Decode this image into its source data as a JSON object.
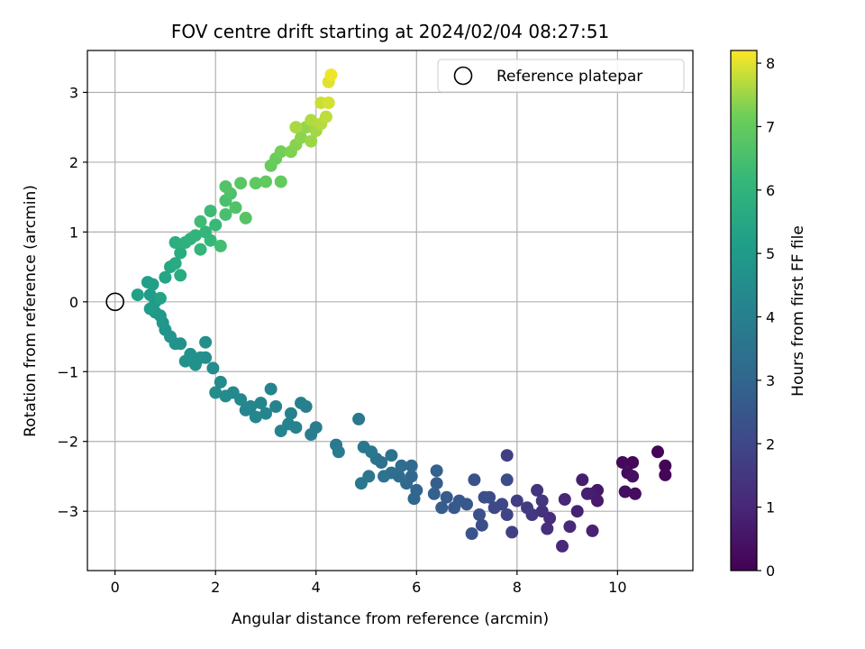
{
  "chart_data": {
    "type": "scatter",
    "title": "FOV centre drift starting at 2024/02/04 08:27:51",
    "xlabel": "Angular distance from reference (arcmin)",
    "ylabel": "Rotation from reference (arcmin)",
    "xlim": [
      -0.55,
      11.5
    ],
    "ylim": [
      -3.85,
      3.6
    ],
    "xticks": [
      0,
      2,
      4,
      6,
      8,
      10
    ],
    "yticks": [
      -3,
      -2,
      -1,
      0,
      1,
      2,
      3
    ],
    "grid": true,
    "legend": {
      "position": "top-right",
      "entries": [
        "Reference platepar"
      ]
    },
    "colorbar": {
      "label": "Hours from first FF file",
      "range": [
        0,
        8.2
      ],
      "ticks": [
        0,
        1,
        2,
        3,
        4,
        5,
        6,
        7,
        8
      ],
      "colormap": "viridis"
    },
    "reference_point": {
      "x": 0,
      "y": 0,
      "label": "Reference platepar"
    },
    "series": [
      {
        "points": [
          [
            10.8,
            -2.15,
            0.1
          ],
          [
            10.95,
            -2.35,
            0.1
          ],
          [
            10.95,
            -2.48,
            0.12
          ],
          [
            10.3,
            -2.3,
            0.15
          ],
          [
            10.1,
            -2.3,
            0.2
          ],
          [
            10.2,
            -2.45,
            0.25
          ],
          [
            10.35,
            -2.75,
            0.3
          ],
          [
            10.15,
            -2.72,
            0.35
          ],
          [
            10.3,
            -2.5,
            0.4
          ],
          [
            9.6,
            -2.7,
            0.6
          ],
          [
            9.6,
            -2.85,
            0.65
          ],
          [
            9.5,
            -2.75,
            0.7
          ],
          [
            9.3,
            -2.55,
            0.75
          ],
          [
            9.4,
            -2.75,
            0.8
          ],
          [
            9.2,
            -3.0,
            0.85
          ],
          [
            9.5,
            -3.28,
            0.9
          ],
          [
            8.95,
            -2.83,
            1.0
          ],
          [
            9.05,
            -3.22,
            1.05
          ],
          [
            8.9,
            -3.5,
            1.1
          ],
          [
            8.65,
            -3.1,
            1.2
          ],
          [
            8.6,
            -3.25,
            1.25
          ],
          [
            8.5,
            -3.0,
            1.3
          ],
          [
            8.4,
            -2.7,
            1.4
          ],
          [
            8.5,
            -2.85,
            1.45
          ],
          [
            8.3,
            -3.05,
            1.5
          ],
          [
            8.2,
            -2.95,
            1.6
          ],
          [
            8.0,
            -2.85,
            1.7
          ],
          [
            7.8,
            -2.2,
            1.75
          ],
          [
            7.9,
            -3.3,
            1.8
          ],
          [
            7.8,
            -3.05,
            1.9
          ],
          [
            7.7,
            -2.9,
            2.0
          ],
          [
            7.55,
            -2.95,
            2.05
          ],
          [
            7.8,
            -2.55,
            2.1
          ],
          [
            7.45,
            -2.8,
            2.15
          ],
          [
            7.3,
            -3.2,
            2.2
          ],
          [
            7.35,
            -2.8,
            2.25
          ],
          [
            7.25,
            -3.05,
            2.3
          ],
          [
            7.15,
            -2.55,
            2.35
          ],
          [
            7.1,
            -3.32,
            2.4
          ],
          [
            7.0,
            -2.9,
            2.5
          ],
          [
            6.85,
            -2.85,
            2.55
          ],
          [
            6.75,
            -2.95,
            2.6
          ],
          [
            6.6,
            -2.8,
            2.65
          ],
          [
            6.5,
            -2.95,
            2.7
          ],
          [
            6.4,
            -2.6,
            2.75
          ],
          [
            6.35,
            -2.75,
            2.8
          ],
          [
            6.4,
            -2.42,
            2.85
          ],
          [
            6.0,
            -2.7,
            3.0
          ],
          [
            5.95,
            -2.82,
            3.05
          ],
          [
            5.9,
            -2.5,
            3.1
          ],
          [
            5.9,
            -2.35,
            3.15
          ],
          [
            5.8,
            -2.6,
            3.2
          ],
          [
            5.65,
            -2.5,
            3.25
          ],
          [
            5.7,
            -2.35,
            3.3
          ],
          [
            5.5,
            -2.45,
            3.35
          ],
          [
            5.3,
            -2.3,
            3.4
          ],
          [
            5.35,
            -2.5,
            3.45
          ],
          [
            5.5,
            -2.2,
            3.5
          ],
          [
            5.2,
            -2.25,
            3.55
          ],
          [
            5.05,
            -2.5,
            3.6
          ],
          [
            5.1,
            -2.15,
            3.65
          ],
          [
            4.95,
            -2.08,
            3.7
          ],
          [
            4.9,
            -2.6,
            3.72
          ],
          [
            4.85,
            -1.68,
            3.75
          ],
          [
            4.4,
            -2.05,
            3.8
          ],
          [
            4.45,
            -2.15,
            3.85
          ],
          [
            4.0,
            -1.8,
            3.9
          ],
          [
            3.9,
            -1.9,
            3.95
          ],
          [
            3.8,
            -1.5,
            4.0
          ],
          [
            3.7,
            -1.45,
            4.02
          ],
          [
            3.6,
            -1.8,
            4.05
          ],
          [
            3.5,
            -1.6,
            4.08
          ],
          [
            3.45,
            -1.75,
            4.1
          ],
          [
            3.3,
            -1.85,
            4.12
          ],
          [
            3.2,
            -1.5,
            4.15
          ],
          [
            3.1,
            -1.25,
            4.18
          ],
          [
            3.0,
            -1.6,
            4.2
          ],
          [
            2.9,
            -1.45,
            4.22
          ],
          [
            2.8,
            -1.65,
            4.25
          ],
          [
            2.7,
            -1.5,
            4.28
          ],
          [
            2.6,
            -1.55,
            4.3
          ],
          [
            2.5,
            -1.4,
            4.32
          ],
          [
            2.35,
            -1.3,
            4.35
          ],
          [
            2.2,
            -1.35,
            4.38
          ],
          [
            2.1,
            -1.15,
            4.4
          ],
          [
            1.95,
            -0.95,
            4.45
          ],
          [
            2.0,
            -1.3,
            4.5
          ],
          [
            1.8,
            -0.8,
            4.55
          ],
          [
            1.8,
            -0.58,
            4.58
          ],
          [
            1.7,
            -0.8,
            4.6
          ],
          [
            1.6,
            -0.9,
            4.62
          ],
          [
            1.5,
            -0.75,
            4.65
          ],
          [
            1.4,
            -0.85,
            4.68
          ],
          [
            1.3,
            -0.6,
            4.7
          ],
          [
            1.2,
            -0.6,
            4.72
          ],
          [
            1.1,
            -0.5,
            4.75
          ],
          [
            1.0,
            -0.4,
            4.8
          ],
          [
            0.95,
            -0.3,
            4.85
          ],
          [
            0.9,
            -0.2,
            4.9
          ],
          [
            0.8,
            -0.15,
            4.95
          ],
          [
            0.8,
            0.0,
            5.0
          ],
          [
            0.7,
            -0.1,
            5.05
          ],
          [
            0.7,
            0.1,
            5.1
          ],
          [
            0.75,
            0.25,
            5.15
          ],
          [
            0.65,
            0.28,
            5.2
          ],
          [
            0.45,
            0.1,
            5.25
          ],
          [
            0.9,
            0.05,
            5.3
          ],
          [
            1.0,
            0.35,
            5.4
          ],
          [
            1.1,
            0.5,
            5.5
          ],
          [
            1.2,
            0.55,
            5.6
          ],
          [
            1.3,
            0.38,
            5.65
          ],
          [
            1.3,
            0.7,
            5.7
          ],
          [
            1.2,
            0.85,
            5.8
          ],
          [
            1.4,
            0.85,
            5.85
          ],
          [
            1.5,
            0.9,
            5.9
          ],
          [
            1.6,
            0.95,
            6.0
          ],
          [
            1.7,
            0.75,
            6.05
          ],
          [
            1.8,
            1.0,
            6.1
          ],
          [
            1.9,
            0.88,
            6.15
          ],
          [
            2.0,
            1.1,
            6.2
          ],
          [
            1.9,
            1.3,
            6.3
          ],
          [
            1.7,
            1.15,
            6.35
          ],
          [
            2.1,
            0.8,
            6.4
          ],
          [
            2.2,
            1.25,
            6.5
          ],
          [
            2.2,
            1.45,
            6.55
          ],
          [
            2.3,
            1.55,
            6.6
          ],
          [
            2.4,
            1.35,
            6.65
          ],
          [
            2.2,
            1.65,
            6.7
          ],
          [
            2.6,
            1.2,
            6.75
          ],
          [
            2.5,
            1.7,
            6.8
          ],
          [
            2.8,
            1.7,
            6.9
          ],
          [
            3.0,
            1.72,
            6.95
          ],
          [
            3.3,
            1.72,
            7.0
          ],
          [
            3.1,
            1.95,
            7.05
          ],
          [
            3.2,
            2.05,
            7.1
          ],
          [
            3.3,
            2.15,
            7.2
          ],
          [
            3.5,
            2.15,
            7.3
          ],
          [
            3.6,
            2.25,
            7.35
          ],
          [
            3.7,
            2.35,
            7.4
          ],
          [
            3.8,
            2.5,
            7.45
          ],
          [
            3.9,
            2.3,
            7.5
          ],
          [
            4.0,
            2.45,
            7.55
          ],
          [
            3.6,
            2.5,
            7.6
          ],
          [
            3.9,
            2.6,
            7.65
          ],
          [
            4.1,
            2.55,
            7.7
          ],
          [
            4.2,
            2.65,
            7.75
          ],
          [
            4.1,
            2.85,
            7.85
          ],
          [
            4.25,
            2.85,
            7.9
          ],
          [
            4.25,
            3.15,
            8.0
          ],
          [
            4.3,
            3.25,
            8.1
          ]
        ]
      }
    ]
  }
}
